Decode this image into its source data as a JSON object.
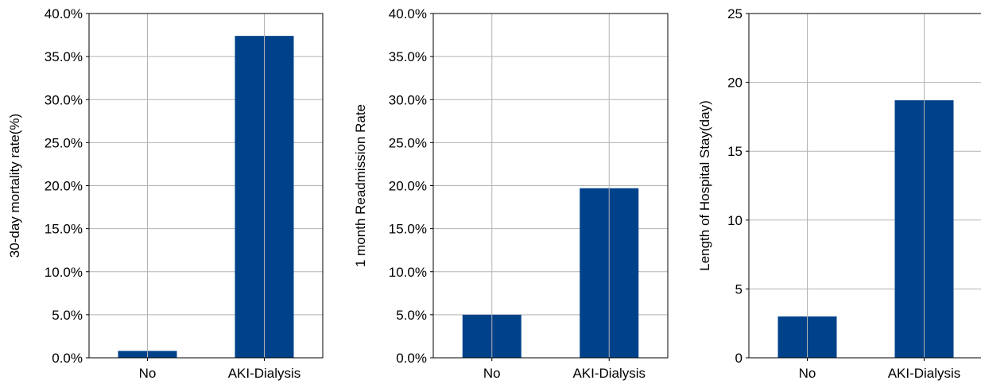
{
  "colors": {
    "bar": "#00428a",
    "grid": "#b3b3b3",
    "axis": "#000000"
  },
  "chart_data": [
    {
      "type": "bar",
      "categories": [
        "No",
        "AKI-Dialysis"
      ],
      "values": [
        0.8,
        37.4
      ],
      "title": "",
      "xlabel": "",
      "ylabel": "30-day mortality rate(%)",
      "ylim": [
        0,
        40
      ],
      "yticks": [
        0,
        5,
        10,
        15,
        20,
        25,
        30,
        35,
        40
      ],
      "ytick_labels": [
        "0.0%",
        "5.0%",
        "10.0%",
        "15.0%",
        "20.0%",
        "25.0%",
        "30.0%",
        "35.0%",
        "40.0%"
      ],
      "grid": true,
      "legend": "none"
    },
    {
      "type": "bar",
      "categories": [
        "No",
        "AKI-Dialysis"
      ],
      "values": [
        5.0,
        19.7
      ],
      "title": "",
      "xlabel": "",
      "ylabel": "1 month Readmission Rate",
      "ylim": [
        0,
        40
      ],
      "yticks": [
        0,
        5,
        10,
        15,
        20,
        25,
        30,
        35,
        40
      ],
      "ytick_labels": [
        "0.0%",
        "5.0%",
        "10.0%",
        "15.0%",
        "20.0%",
        "25.0%",
        "30.0%",
        "35.0%",
        "40.0%"
      ],
      "grid": true,
      "legend": "none"
    },
    {
      "type": "bar",
      "categories": [
        "No",
        "AKI-Dialysis"
      ],
      "values": [
        3.0,
        18.7
      ],
      "title": "",
      "xlabel": "",
      "ylabel": "Length of Hospital Stay(day)",
      "ylim": [
        0,
        25
      ],
      "yticks": [
        0,
        5,
        10,
        15,
        20,
        25
      ],
      "ytick_labels": [
        "0",
        "5",
        "10",
        "15",
        "20",
        "25"
      ],
      "grid": true,
      "legend": "none"
    }
  ]
}
